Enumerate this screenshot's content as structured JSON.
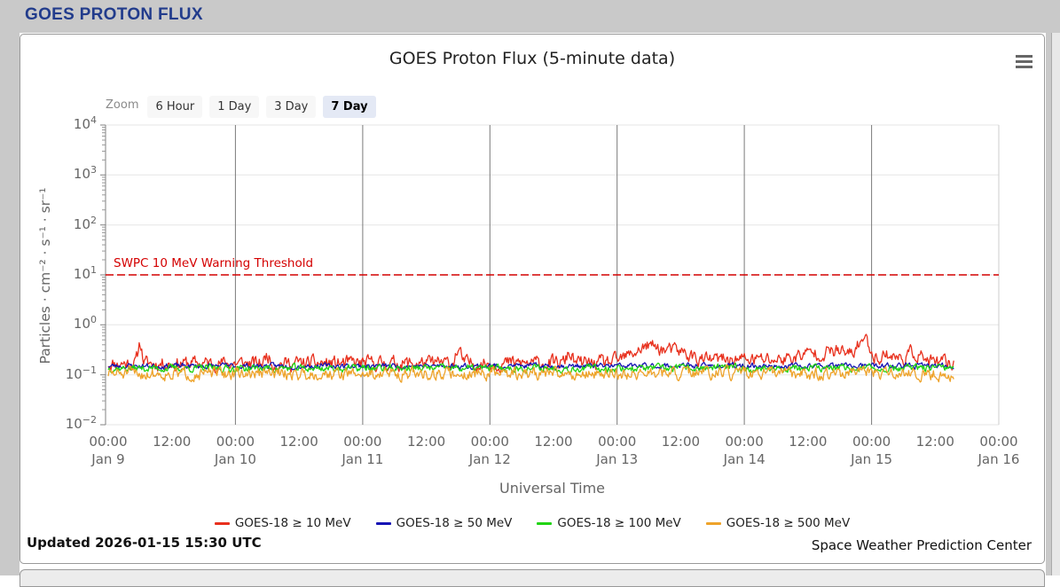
{
  "page": {
    "header_title": "GOES PROTON FLUX"
  },
  "chart": {
    "zoom": {
      "label": "Zoom",
      "options": [
        "6 Hour",
        "1 Day",
        "3 Day",
        "7 Day"
      ],
      "selected": "7 Day"
    },
    "menu_icon": "hamburger-menu-icon",
    "footer": {
      "updated": "Updated 2026-01-15 15:30 UTC",
      "source": "Space Weather Prediction Center"
    }
  },
  "chart_data": {
    "type": "line",
    "title": "GOES Proton Flux (5-minute data)",
    "xlabel": "Universal Time",
    "ylabel": "Particles · cm⁻² · s⁻¹ · sr⁻¹",
    "x_days": [
      "Jan 9",
      "Jan 10",
      "Jan 11",
      "Jan 12",
      "Jan 13",
      "Jan 14",
      "Jan 15",
      "Jan 16"
    ],
    "x_tick_times": [
      "00:00",
      "12:00"
    ],
    "x_range_hours": 168,
    "data_end_hours": 159.5,
    "sample_minutes": 10,
    "y_log_min": -2,
    "y_log_max": 4,
    "y_axis_scale": "log10",
    "grid": {
      "x_day_lines": true,
      "y_decade_lines": true,
      "x_gridline_color": "#7a7a7a",
      "y_gridline_color": "#e6e6e6"
    },
    "threshold": {
      "label": "SWPC 10 MeV Warning Threshold",
      "value": 10,
      "color": "#d40000",
      "style": "dashed"
    },
    "legend_position": "bottom",
    "series": [
      {
        "name": "GOES-18 ≥ 10 MeV",
        "color": "#e8301d",
        "baseline": 0.17,
        "noise_log_amp": 0.115,
        "seed": 11,
        "peaks": [
          [
            6,
            0.35,
            2.6
          ],
          [
            30,
            0.4,
            1.5
          ],
          [
            66,
            0.5,
            1.8
          ],
          [
            87,
            0.5,
            1.6
          ],
          [
            102,
            3,
            2.1
          ],
          [
            108,
            2,
            1.4
          ],
          [
            120,
            10,
            1.2
          ],
          [
            133,
            3,
            1.45
          ],
          [
            138,
            2,
            1.5
          ],
          [
            142.5,
            1.2,
            2.9
          ],
          [
            147,
            1.5,
            1.5
          ],
          [
            152,
            1.5,
            1.6
          ]
        ]
      },
      {
        "name": "GOES-18 ≥ 50 MeV",
        "color": "#1612b4",
        "baseline": 0.15,
        "noise_log_amp": 0.045,
        "seed": 23,
        "peaks": []
      },
      {
        "name": "GOES-18 ≥ 100 MeV",
        "color": "#21d413",
        "baseline": 0.135,
        "noise_log_amp": 0.06,
        "seed": 37,
        "peaks": []
      },
      {
        "name": "GOES-18 ≥ 500 MeV",
        "color": "#eea32a",
        "baseline": 0.105,
        "noise_log_amp": 0.1,
        "seed": 51,
        "peaks": []
      }
    ]
  }
}
